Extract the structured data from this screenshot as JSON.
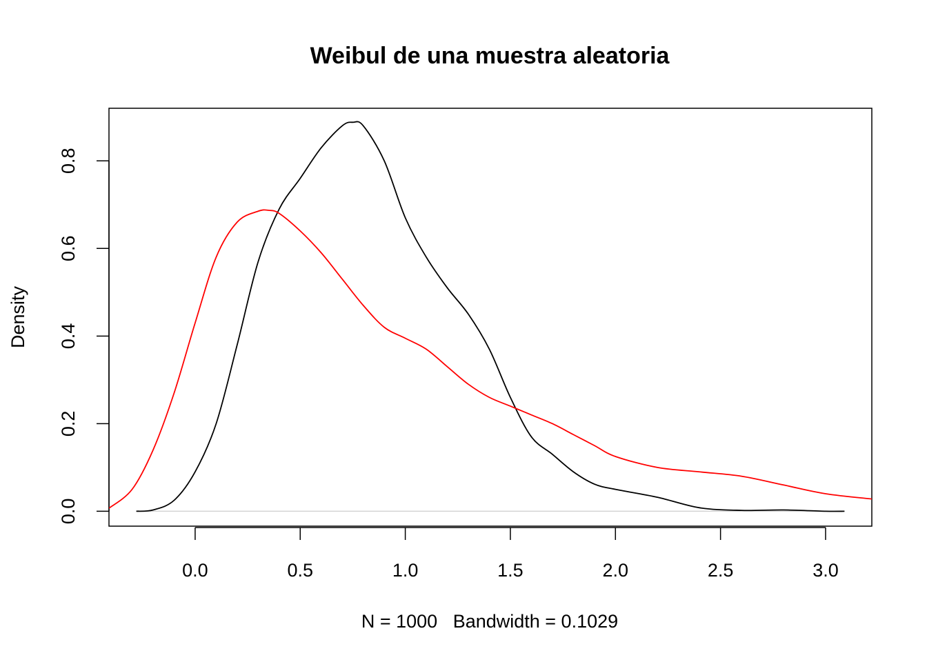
{
  "chart_data": {
    "type": "line",
    "title": "Weibul de una muestra aleatoria",
    "xlabel": "N = 1000   Bandwidth = 0.1029",
    "ylabel": "Density",
    "xlim": [
      -0.41,
      3.22
    ],
    "ylim": [
      -0.034,
      0.92
    ],
    "x_ticks": [
      0.0,
      0.5,
      1.0,
      1.5,
      2.0,
      2.5,
      3.0
    ],
    "x_tick_labels": [
      "0.0",
      "0.5",
      "1.0",
      "1.5",
      "2.0",
      "2.5",
      "3.0"
    ],
    "y_ticks": [
      0.0,
      0.2,
      0.4,
      0.6,
      0.8
    ],
    "y_tick_labels": [
      "0.0",
      "0.2",
      "0.4",
      "0.6",
      "0.8"
    ],
    "grid": false,
    "reference_line_y": 0,
    "reference_line_color": "#d3d3d3",
    "series": [
      {
        "color": "#000000",
        "x": [
          -0.28,
          -0.2,
          -0.1,
          0.0,
          0.1,
          0.2,
          0.3,
          0.4,
          0.5,
          0.6,
          0.7,
          0.75,
          0.8,
          0.9,
          1.0,
          1.1,
          1.2,
          1.3,
          1.4,
          1.5,
          1.6,
          1.7,
          1.8,
          1.9,
          2.0,
          2.2,
          2.4,
          2.6,
          2.8,
          3.0,
          3.09
        ],
        "y": [
          0.0,
          0.003,
          0.025,
          0.09,
          0.2,
          0.38,
          0.57,
          0.69,
          0.76,
          0.83,
          0.88,
          0.888,
          0.88,
          0.8,
          0.67,
          0.58,
          0.51,
          0.45,
          0.37,
          0.26,
          0.17,
          0.13,
          0.09,
          0.062,
          0.05,
          0.032,
          0.008,
          0.002,
          0.003,
          0.0,
          0.0
        ]
      },
      {
        "color": "#ff0000",
        "x": [
          -0.41,
          -0.3,
          -0.2,
          -0.1,
          0.0,
          0.1,
          0.2,
          0.3,
          0.35,
          0.4,
          0.5,
          0.6,
          0.7,
          0.8,
          0.9,
          1.0,
          1.1,
          1.2,
          1.3,
          1.4,
          1.5,
          1.6,
          1.7,
          1.8,
          1.9,
          2.0,
          2.2,
          2.4,
          2.6,
          2.8,
          3.0,
          3.22
        ],
        "y": [
          0.007,
          0.05,
          0.14,
          0.27,
          0.43,
          0.58,
          0.66,
          0.685,
          0.687,
          0.68,
          0.64,
          0.59,
          0.53,
          0.47,
          0.42,
          0.395,
          0.37,
          0.33,
          0.29,
          0.26,
          0.24,
          0.22,
          0.2,
          0.175,
          0.15,
          0.125,
          0.1,
          0.09,
          0.08,
          0.06,
          0.04,
          0.028
        ]
      }
    ]
  }
}
